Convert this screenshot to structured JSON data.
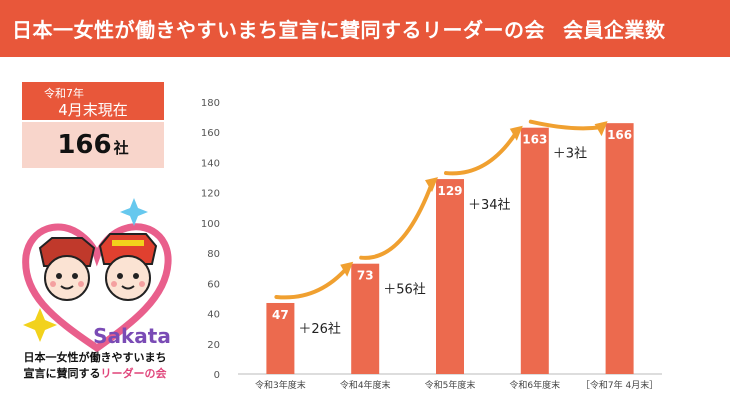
{
  "header": {
    "title": "日本一女性が働きやすいまち宣言に賛同するリーダーの会",
    "subtitle": "会員企業数"
  },
  "summary": {
    "era_year": "令和7年",
    "as_of": "4月末現在",
    "count": "166",
    "unit": "社"
  },
  "logo": {
    "wordmark": "Sakata",
    "line1": "日本一女性が働きやすいまち",
    "line2_a": "宣言に賛同する",
    "line2_b": "リーダーの会"
  },
  "colors": {
    "accent": "#e8573a",
    "bar": "#ec6a4e",
    "count_bg": "#f8d5cb",
    "arrow": "#f0a030"
  },
  "chart_data": {
    "type": "bar",
    "categories": [
      "令和3年度末",
      "令和4年度末",
      "令和5年度末",
      "令和6年度末",
      "［令和7年 4月末］"
    ],
    "values": [
      47,
      73,
      129,
      163,
      166
    ],
    "increase_labels": [
      "＋26社",
      "＋56社",
      "＋34社",
      "＋3社"
    ],
    "ylim": [
      0,
      180
    ],
    "yticks": [
      0,
      20,
      40,
      60,
      80,
      100,
      120,
      140,
      160,
      180
    ],
    "grid": false,
    "legend": "none"
  }
}
